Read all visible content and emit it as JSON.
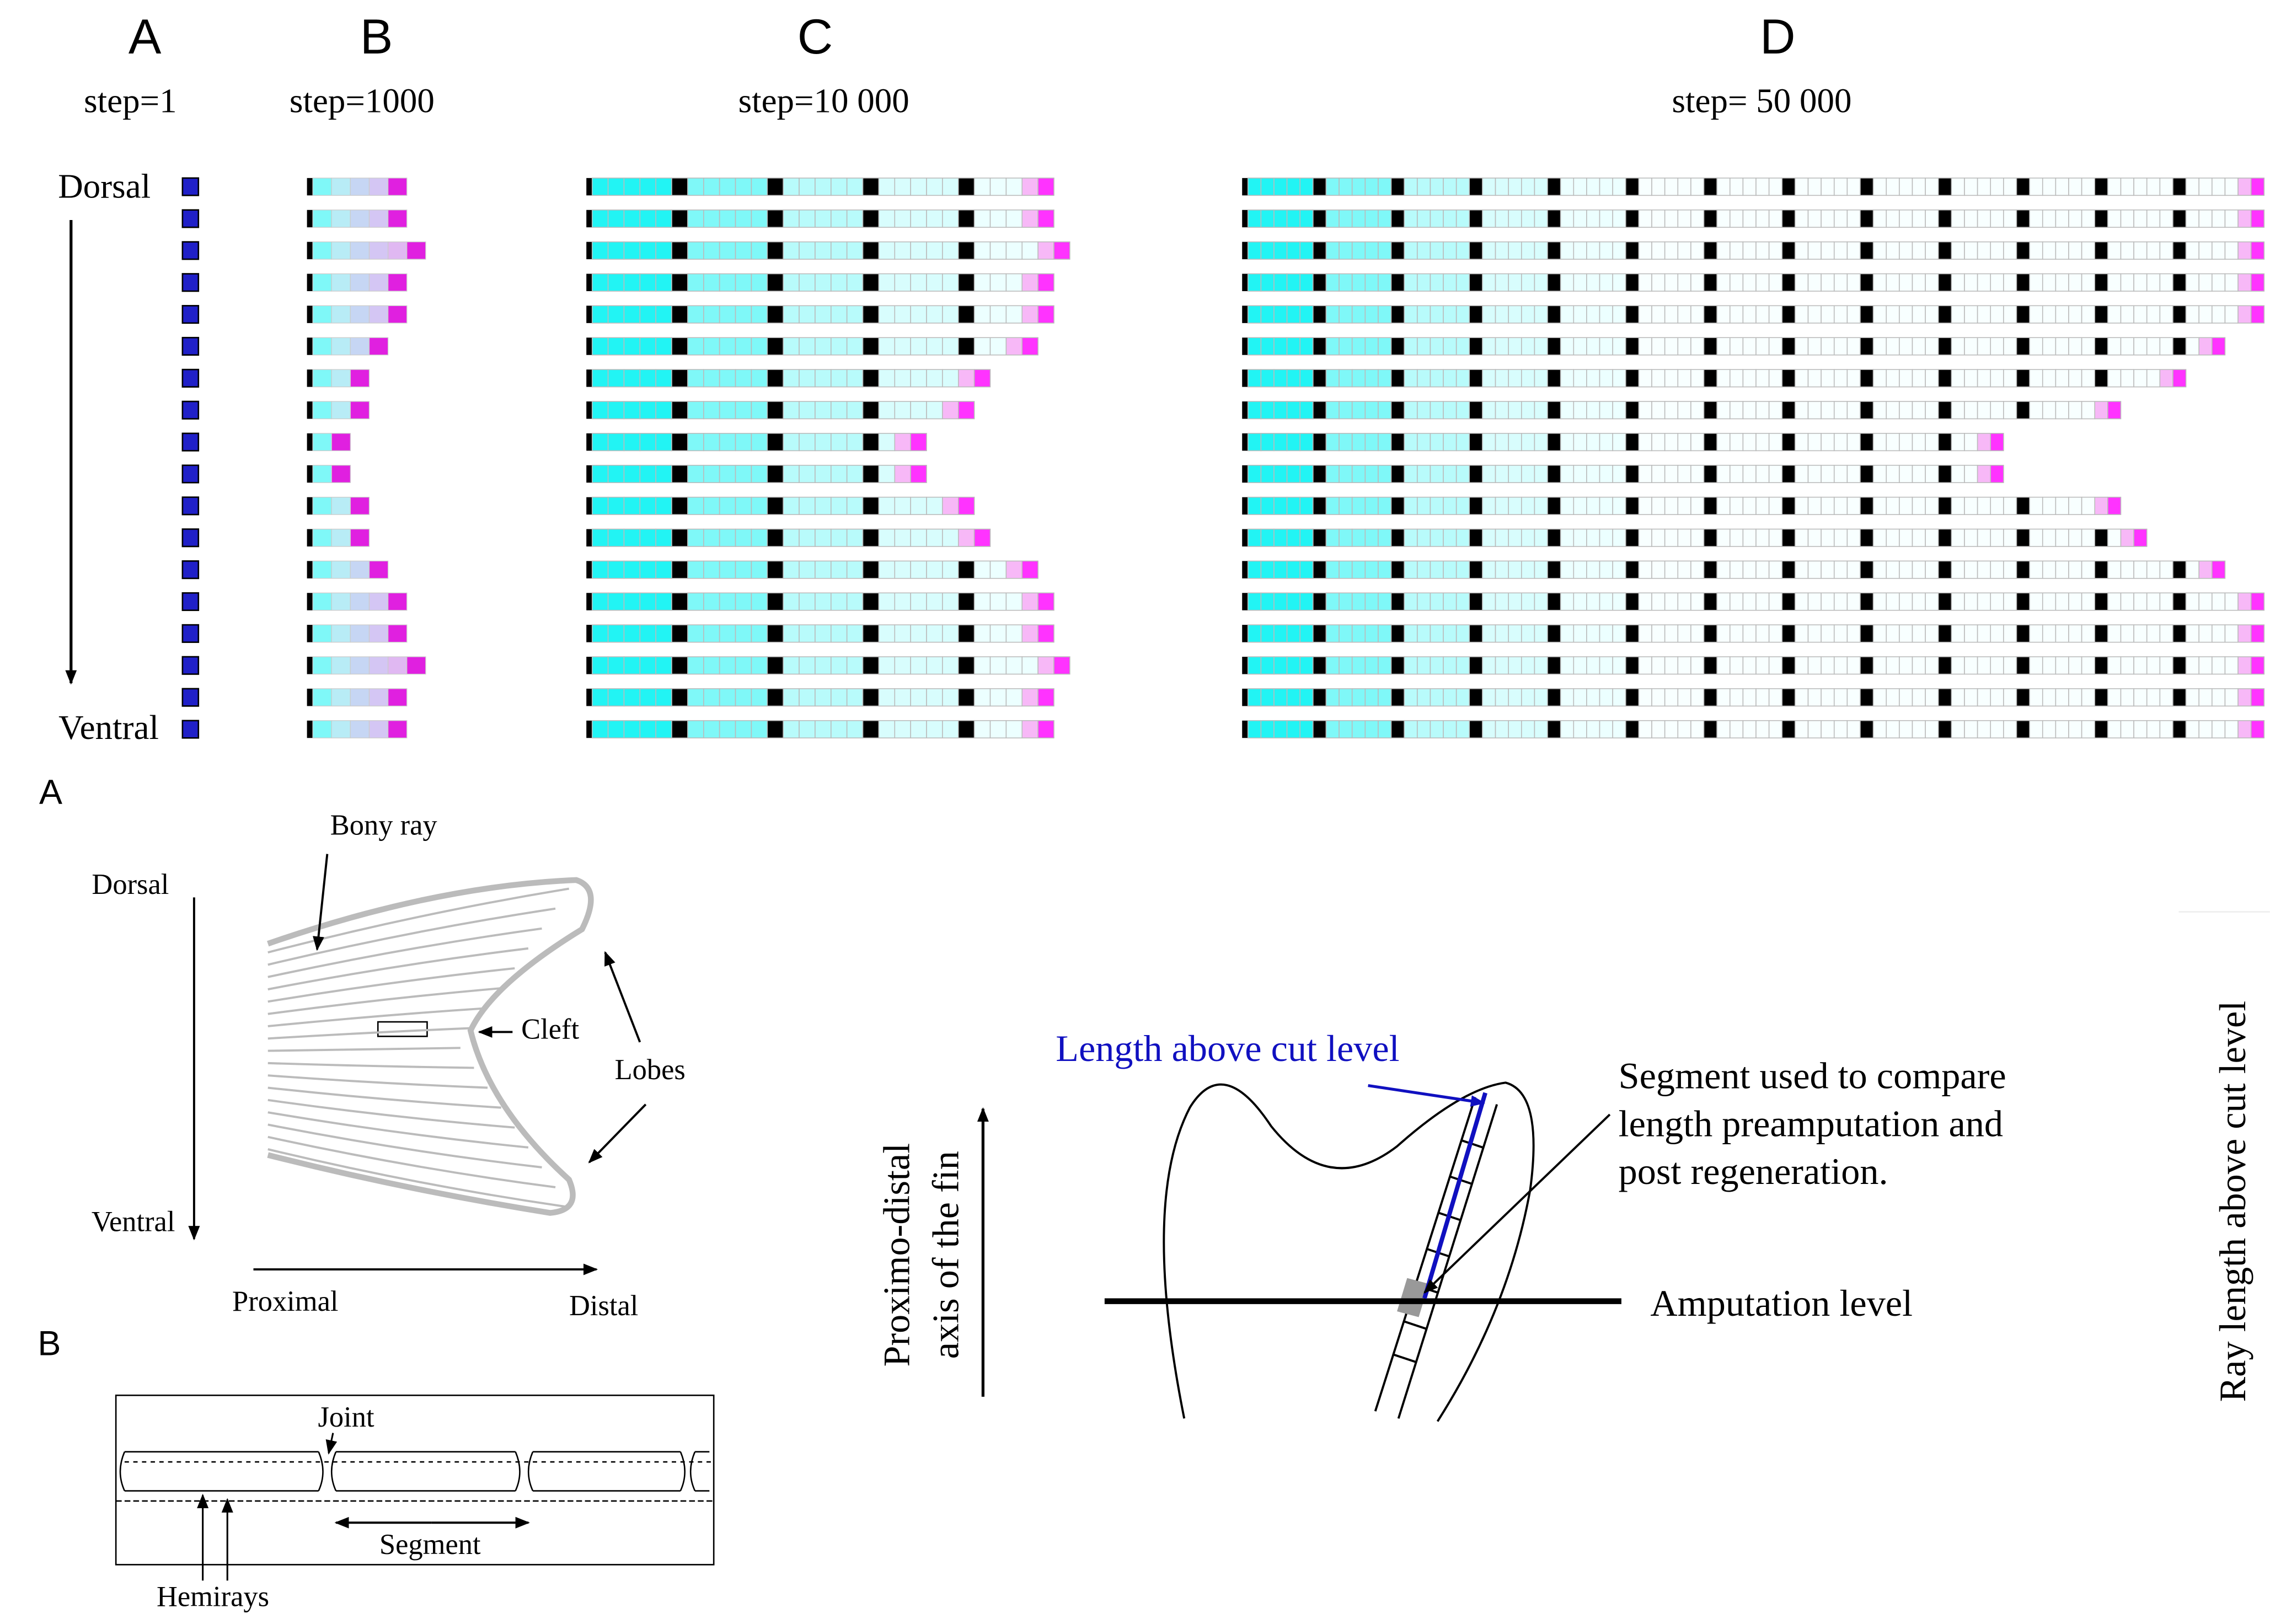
{
  "top_panels": [
    {
      "label": "A",
      "step": "step=1"
    },
    {
      "label": "B",
      "step": "step=1000"
    },
    {
      "label": "C",
      "step": "step=10 000"
    },
    {
      "label": "D",
      "step": "step= 50 000"
    }
  ],
  "top_axis": {
    "dorsal": "Dorsal",
    "ventral": "Ventral"
  },
  "fin_diagram": {
    "label": "A",
    "bony_ray": "Bony ray",
    "dorsal": "Dorsal",
    "cleft": "Cleft",
    "lobes": "Lobes",
    "ventral": "Ventral",
    "proximal": "Proximal",
    "distal": "Distal"
  },
  "ray_diagram": {
    "label": "B",
    "joint": "Joint",
    "segment": "Segment",
    "hemirays": "Hemirays"
  },
  "measure_diagram": {
    "length_label": "Length above cut level",
    "segment_note": [
      "Segment used to compare",
      "length preamputation and",
      "post regeneration."
    ],
    "amputation": "Amputation level",
    "axis": [
      "Proximo-distal",
      "axis of the fin"
    ]
  },
  "right_axis_label": "Ray length above cut level"
}
